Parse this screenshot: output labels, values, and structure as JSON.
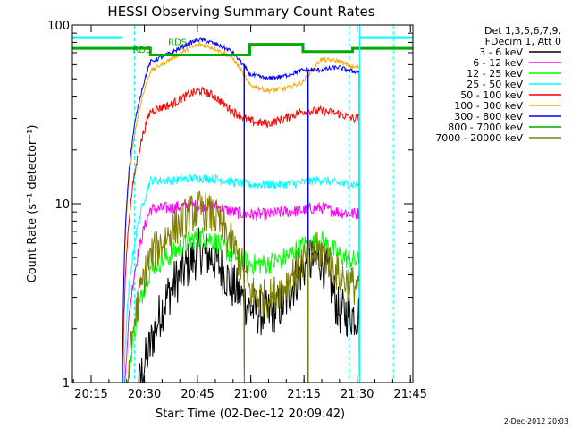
{
  "chart_data": {
    "type": "line",
    "title": "HESSI Observing Summary Count Rates",
    "xlabel": "Start Time (02-Dec-12 20:09:42)",
    "ylabel": "Count Rate (s⁻¹ detector⁻¹)",
    "yscale": "log",
    "ylim": [
      1,
      100
    ],
    "xlim_minutes": [
      0,
      96
    ],
    "x_ticks": [
      {
        "label": "20:15",
        "minute": 5.3
      },
      {
        "label": "20:30",
        "minute": 20.3
      },
      {
        "label": "20:45",
        "minute": 35.3
      },
      {
        "label": "21:00",
        "minute": 50.3
      },
      {
        "label": "21:15",
        "minute": 65.3
      },
      {
        "label": "21:30",
        "minute": 80.3
      },
      {
        "label": "21:45",
        "minute": 95.3
      }
    ],
    "y_ticks": [
      {
        "label": "1",
        "value": 1
      },
      {
        "label": "10",
        "value": 10
      },
      {
        "label": "100",
        "value": 100
      }
    ],
    "grid": false,
    "legend_position": "top-right",
    "legend_header": [
      "Det 1,3,5,6,7,9,",
      "FDecim 1, Att 0"
    ],
    "annotations": [
      {
        "text": "RDS",
        "minute": 17.0,
        "value": 70
      },
      {
        "text": "RDS",
        "minute": 27.0,
        "value": 77
      }
    ],
    "footer": "2-Dec-2012 20:03",
    "series": [
      {
        "name": "3 - 6 keV",
        "color": "#000000",
        "values": [
          0,
          0,
          1.6,
          3.4,
          4.6,
          5.5,
          4.9,
          3.5,
          2.6,
          2.4,
          2.8,
          4.4,
          5.0,
          2.5,
          2.4
        ]
      },
      {
        "name": "6 - 12 keV",
        "color": "#ff00ff",
        "values": [
          0,
          0,
          9.3,
          9.5,
          9.8,
          9.8,
          9.7,
          9.0,
          8.7,
          8.7,
          9.0,
          9.2,
          9.5,
          9.0,
          8.8
        ]
      },
      {
        "name": "12 - 25 keV",
        "color": "#00ff00",
        "values": [
          0,
          0,
          4.4,
          5.2,
          6.2,
          6.6,
          6.2,
          5.2,
          4.6,
          4.6,
          5.0,
          5.8,
          6.2,
          5.2,
          4.8
        ]
      },
      {
        "name": "25 - 50 keV",
        "color": "#00ffff",
        "values": [
          0,
          0,
          13.5,
          13.5,
          13.8,
          13.9,
          13.8,
          13.3,
          12.8,
          12.8,
          12.8,
          13.2,
          13.6,
          13.0,
          12.8
        ]
      },
      {
        "name": "50 - 100 keV",
        "color": "#ff0000",
        "values": [
          0,
          0,
          33,
          36,
          41,
          43,
          40,
          33,
          29,
          28,
          30,
          33,
          33,
          32,
          30
        ]
      },
      {
        "name": "100 - 300 keV",
        "color": "#ffa500",
        "values": [
          0,
          0,
          55,
          65,
          74,
          78,
          74,
          66,
          46,
          43,
          44,
          48,
          64,
          63,
          58
        ]
      },
      {
        "name": "300 - 800 keV",
        "color": "#0000ff",
        "values": [
          0,
          0,
          62,
          70,
          79,
          83,
          79,
          71,
          53,
          50,
          52,
          56,
          56,
          58,
          55
        ]
      },
      {
        "name": "800 - 7000 keV",
        "color": "#00aa00",
        "values": [
          74,
          74,
          68,
          68,
          68,
          68,
          68,
          68,
          78,
          78,
          78,
          71,
          71,
          71,
          74
        ]
      },
      {
        "name": "7000 - 20000 keV",
        "color": "#808000",
        "values": [
          0,
          0,
          5.0,
          7.0,
          8.7,
          9.3,
          8.5,
          6.0,
          3.2,
          2.9,
          3.5,
          4.8,
          5.5,
          4.0,
          3.5
        ]
      }
    ],
    "x_minutes": [
      0,
      14,
      22,
      28,
      33,
      36,
      40,
      45,
      50,
      55,
      60,
      65,
      70,
      75,
      79
    ],
    "segments": [
      {
        "start": 0,
        "end": 14,
        "kind": "flat"
      },
      {
        "start": 14,
        "end": 48.5,
        "kind": "data"
      },
      {
        "start": 48.5,
        "end": 66.5,
        "kind": "data"
      },
      {
        "start": 66.5,
        "end": 81,
        "kind": "data"
      },
      {
        "start": 81,
        "end": 96,
        "kind": "flat"
      }
    ],
    "cyan_markers_minutes": [
      17.5,
      78.0,
      90.5
    ]
  }
}
